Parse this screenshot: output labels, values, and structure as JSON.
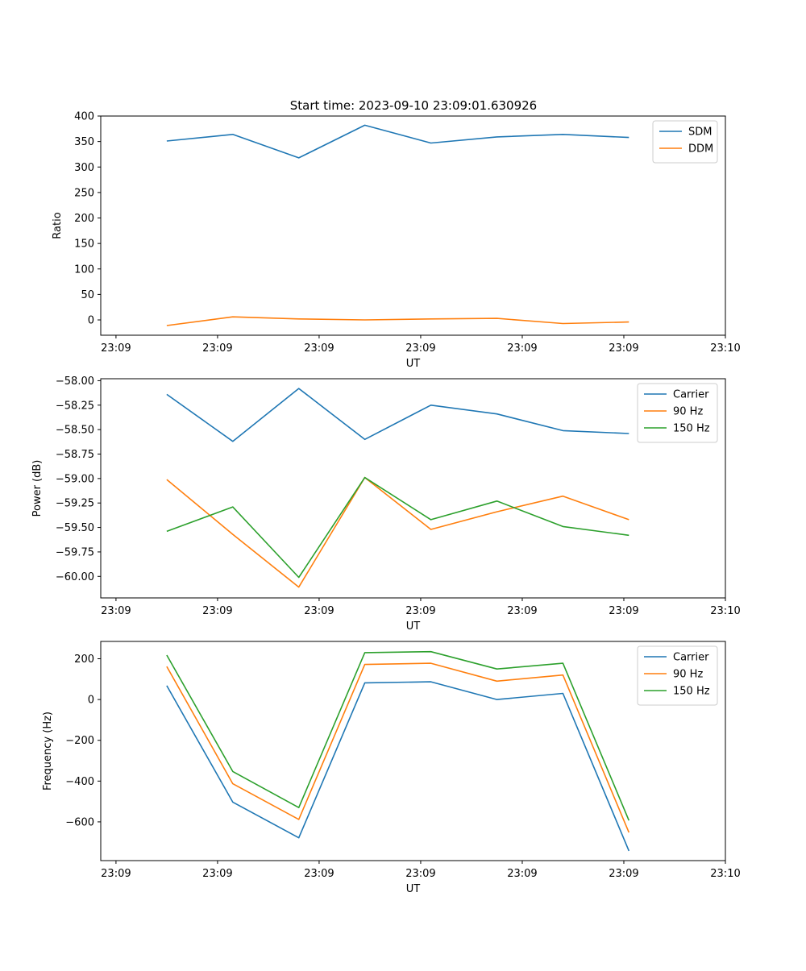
{
  "figure": {
    "title": "Start time: 2023-09-10 23:09:01.630926"
  },
  "colors": {
    "blue": "#1f77b4",
    "orange": "#ff7f0e",
    "green": "#2ca02c"
  },
  "chart_data": [
    {
      "type": "line",
      "title": "Start time: 2023-09-10 23:09:01.630926",
      "xlabel": "UT",
      "ylabel": "Ratio",
      "x": [
        0.5,
        1.15,
        1.8,
        2.45,
        3.1,
        3.75,
        4.4,
        5.05
      ],
      "xlim": [
        -0.15,
        6.0
      ],
      "ylim": [
        -30,
        400
      ],
      "xticks": [
        0,
        1,
        2,
        3,
        4,
        5,
        6
      ],
      "xticklabels": [
        "23:09",
        "23:09",
        "23:09",
        "23:09",
        "23:09",
        "23:09",
        "23:10"
      ],
      "yticks": [
        0,
        50,
        100,
        150,
        200,
        250,
        300,
        350,
        400
      ],
      "yticklabels": [
        "0",
        "50",
        "100",
        "150",
        "200",
        "250",
        "300",
        "350",
        "400"
      ],
      "legend": "top-right",
      "series": [
        {
          "name": "SDM",
          "color": "#1f77b4",
          "values": [
            351,
            364,
            318,
            382,
            347,
            359,
            364,
            358
          ]
        },
        {
          "name": "DDM",
          "color": "#ff7f0e",
          "values": [
            -11,
            6,
            2,
            0,
            2,
            3,
            -7,
            -4
          ]
        }
      ]
    },
    {
      "type": "line",
      "title": "",
      "xlabel": "UT",
      "ylabel": "Power (dB)",
      "x": [
        0.5,
        1.15,
        1.8,
        2.45,
        3.1,
        3.75,
        4.4,
        5.05
      ],
      "xlim": [
        -0.15,
        6.0
      ],
      "ylim": [
        -60.22,
        -57.98
      ],
      "xticks": [
        0,
        1,
        2,
        3,
        4,
        5,
        6
      ],
      "xticklabels": [
        "23:09",
        "23:09",
        "23:09",
        "23:09",
        "23:09",
        "23:09",
        "23:10"
      ],
      "yticks": [
        -58.0,
        -58.25,
        -58.5,
        -58.75,
        -59.0,
        -59.25,
        -59.5,
        -59.75,
        -60.0
      ],
      "yticklabels": [
        "−58.00",
        "−58.25",
        "−58.50",
        "−58.75",
        "−59.00",
        "−59.25",
        "−59.50",
        "−59.75",
        "−60.00"
      ],
      "legend": "top-right",
      "series": [
        {
          "name": "Carrier",
          "color": "#1f77b4",
          "values": [
            -58.14,
            -58.62,
            -58.08,
            -58.6,
            -58.25,
            -58.34,
            -58.51,
            -58.54
          ]
        },
        {
          "name": "90 Hz",
          "color": "#ff7f0e",
          "values": [
            -59.01,
            -59.57,
            -60.11,
            -58.99,
            -59.52,
            -59.34,
            -59.18,
            -59.42
          ]
        },
        {
          "name": "150 Hz",
          "color": "#2ca02c",
          "values": [
            -59.54,
            -59.29,
            -60.01,
            -58.99,
            -59.42,
            -59.23,
            -59.49,
            -59.58
          ]
        }
      ]
    },
    {
      "type": "line",
      "title": "",
      "xlabel": "UT",
      "ylabel": "Frequency (Hz)",
      "x": [
        0.5,
        1.15,
        1.8,
        2.45,
        3.1,
        3.75,
        4.4,
        5.05
      ],
      "xlim": [
        -0.15,
        6.0
      ],
      "ylim": [
        -790,
        285
      ],
      "xticks": [
        0,
        1,
        2,
        3,
        4,
        5,
        6
      ],
      "xticklabels": [
        "23:09",
        "23:09",
        "23:09",
        "23:09",
        "23:09",
        "23:09",
        "23:10"
      ],
      "yticks": [
        200,
        0,
        -200,
        -400,
        -600
      ],
      "yticklabels": [
        "200",
        "0",
        "−200",
        "−400",
        "−600"
      ],
      "legend": "top-right",
      "series": [
        {
          "name": "Carrier",
          "color": "#1f77b4",
          "values": [
            68,
            -503,
            -678,
            82,
            87,
            0,
            30,
            -742
          ]
        },
        {
          "name": "90 Hz",
          "color": "#ff7f0e",
          "values": [
            162,
            -413,
            -588,
            172,
            178,
            90,
            120,
            -652
          ]
        },
        {
          "name": "150 Hz",
          "color": "#2ca02c",
          "values": [
            218,
            -353,
            -530,
            230,
            235,
            150,
            178,
            -593
          ]
        }
      ]
    }
  ]
}
